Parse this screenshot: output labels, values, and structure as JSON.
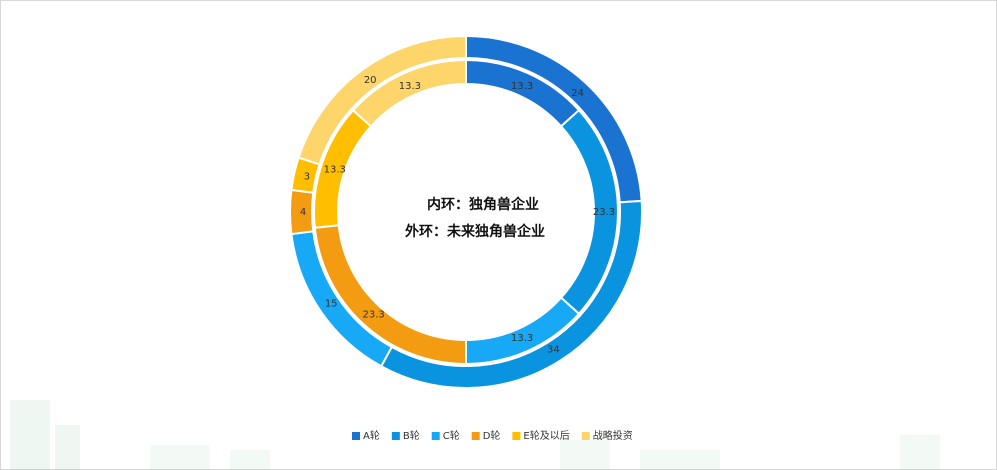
{
  "chart_data": {
    "type": "donut",
    "center_text": [
      "内环：独角兽企业",
      "外环：未来独角兽企业"
    ],
    "categories": [
      "A轮",
      "B轮",
      "C轮",
      "D轮",
      "E轮及以后",
      "战略投资"
    ],
    "colors": [
      "#1a73d0",
      "#0a94e0",
      "#17a9f5",
      "#f39c12",
      "#ffbf00",
      "#fdd56a"
    ],
    "rings": [
      {
        "values": [
          13.3,
          23.3,
          13.3,
          23.3,
          13.3,
          13.3
        ]
      },
      {
        "values": [
          24,
          34,
          15,
          4,
          3,
          20
        ]
      }
    ],
    "legend": "bottom"
  }
}
